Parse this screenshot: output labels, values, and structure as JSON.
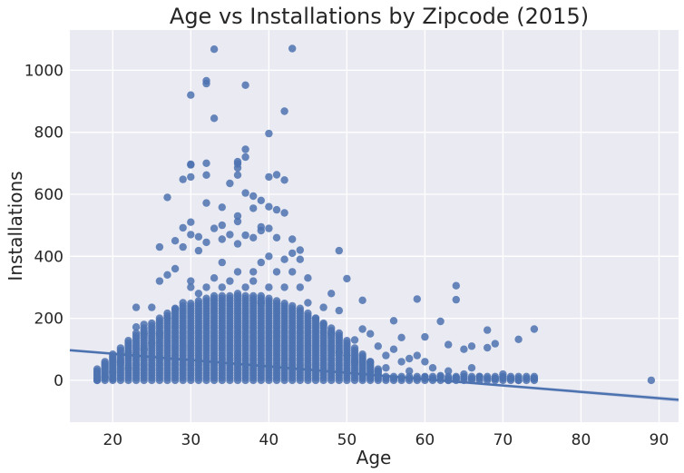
{
  "chart_data": {
    "type": "scatter",
    "title": "Age vs Installations by Zipcode (2015)",
    "xlabel": "Age",
    "ylabel": "Installations",
    "xlim": [
      14.5,
      92.5
    ],
    "ylim": [
      -135,
      1130
    ],
    "xticks": [
      "20",
      "30",
      "40",
      "50",
      "60",
      "70",
      "80",
      "90"
    ],
    "yticks": [
      "0",
      "200",
      "400",
      "600",
      "800",
      "1000"
    ],
    "grid": true,
    "background": "#eaeaf2",
    "point_color": "#4c72b0",
    "regression": {
      "x": [
        14.5,
        92.5
      ],
      "y": [
        97,
        -63
      ]
    },
    "points": [
      [
        33,
        1068
      ],
      [
        43,
        1070
      ],
      [
        32,
        966
      ],
      [
        32,
        957
      ],
      [
        30,
        920
      ],
      [
        37,
        952
      ],
      [
        33,
        845
      ],
      [
        42,
        868
      ],
      [
        40,
        796
      ],
      [
        37,
        745
      ],
      [
        36,
        705
      ],
      [
        36,
        698
      ],
      [
        30,
        697
      ],
      [
        30,
        695
      ],
      [
        32,
        700
      ],
      [
        36,
        685
      ],
      [
        37,
        720
      ],
      [
        36,
        662
      ],
      [
        32,
        662
      ],
      [
        41,
        663
      ],
      [
        40,
        656
      ],
      [
        30,
        656
      ],
      [
        29,
        648
      ],
      [
        42,
        646
      ],
      [
        37,
        604
      ],
      [
        38,
        594
      ],
      [
        35,
        635
      ],
      [
        27,
        590
      ],
      [
        39,
        580
      ],
      [
        40,
        560
      ],
      [
        32,
        572
      ],
      [
        34,
        558
      ],
      [
        38,
        555
      ],
      [
        41,
        550
      ],
      [
        42,
        540
      ],
      [
        36,
        530
      ],
      [
        30,
        510
      ],
      [
        36,
        512
      ],
      [
        34,
        500
      ],
      [
        33,
        490
      ],
      [
        29,
        492
      ],
      [
        35,
        470
      ],
      [
        39,
        495
      ],
      [
        40,
        490
      ],
      [
        37,
        468
      ],
      [
        39,
        483
      ],
      [
        30,
        470
      ],
      [
        31,
        463
      ],
      [
        34,
        455
      ],
      [
        28,
        450
      ],
      [
        32,
        445
      ],
      [
        38,
        460
      ],
      [
        41,
        460
      ],
      [
        43,
        455
      ],
      [
        29,
        430
      ],
      [
        26,
        430
      ],
      [
        36,
        440
      ],
      [
        44,
        420
      ],
      [
        49,
        418
      ],
      [
        31,
        418
      ],
      [
        40,
        400
      ],
      [
        39,
        380
      ],
      [
        42,
        390
      ],
      [
        43,
        410
      ],
      [
        28,
        360
      ],
      [
        27,
        340
      ],
      [
        34,
        380
      ],
      [
        44,
        390
      ],
      [
        38,
        350
      ],
      [
        30,
        320
      ],
      [
        45,
        330
      ],
      [
        50,
        328
      ],
      [
        26,
        320
      ],
      [
        52,
        258
      ],
      [
        48,
        280
      ],
      [
        59,
        262
      ],
      [
        64,
        305
      ],
      [
        64,
        260
      ],
      [
        56,
        192
      ],
      [
        62,
        190
      ],
      [
        60,
        140
      ],
      [
        74,
        165
      ],
      [
        68,
        162
      ],
      [
        72,
        132
      ],
      [
        63,
        115
      ],
      [
        65,
        100
      ],
      [
        66,
        110
      ],
      [
        68,
        105
      ],
      [
        69,
        118
      ],
      [
        52,
        165
      ],
      [
        53,
        150
      ],
      [
        51,
        130
      ],
      [
        49,
        225
      ],
      [
        47,
        235
      ],
      [
        57,
        138
      ],
      [
        23,
        235
      ],
      [
        25,
        235
      ],
      [
        24,
        180
      ],
      [
        24,
        150
      ],
      [
        23,
        172
      ],
      [
        22,
        90
      ],
      [
        22,
        80
      ],
      [
        21,
        60
      ],
      [
        20,
        26
      ],
      [
        19,
        10
      ],
      [
        18,
        0
      ],
      [
        89,
        0
      ],
      [
        74,
        5
      ],
      [
        72,
        0
      ],
      [
        71,
        5
      ],
      [
        70,
        20
      ],
      [
        70,
        10
      ],
      [
        69,
        5
      ],
      [
        67,
        12
      ],
      [
        66,
        40
      ],
      [
        65,
        20
      ],
      [
        64,
        8
      ],
      [
        63,
        30
      ],
      [
        63,
        0
      ],
      [
        62,
        15
      ],
      [
        61,
        40
      ],
      [
        60,
        60
      ],
      [
        60,
        10
      ],
      [
        59,
        80
      ],
      [
        58,
        30
      ],
      [
        57,
        60
      ],
      [
        56,
        100
      ],
      [
        55,
        80
      ],
      [
        54,
        30
      ],
      [
        53,
        60
      ],
      [
        54,
        110
      ],
      [
        55,
        40
      ],
      [
        58,
        70
      ],
      [
        52,
        20
      ],
      [
        51,
        60
      ],
      [
        50,
        80
      ],
      [
        49,
        90
      ],
      [
        48,
        150
      ],
      [
        47,
        180
      ],
      [
        46,
        200
      ],
      [
        45,
        250
      ],
      [
        44,
        300
      ],
      [
        43,
        350
      ],
      [
        42,
        300
      ],
      [
        41,
        350
      ],
      [
        40,
        300
      ],
      [
        39,
        250
      ],
      [
        38,
        320
      ],
      [
        37,
        300
      ],
      [
        36,
        350
      ],
      [
        35,
        320
      ],
      [
        34,
        300
      ],
      [
        33,
        330
      ],
      [
        32,
        300
      ],
      [
        31,
        280
      ],
      [
        30,
        300
      ],
      [
        29,
        250
      ],
      [
        28,
        230
      ],
      [
        27,
        200
      ],
      [
        26,
        150
      ],
      [
        25,
        120
      ],
      [
        24,
        100
      ],
      [
        23,
        80
      ],
      [
        22,
        40
      ],
      [
        20,
        5
      ]
    ]
  }
}
